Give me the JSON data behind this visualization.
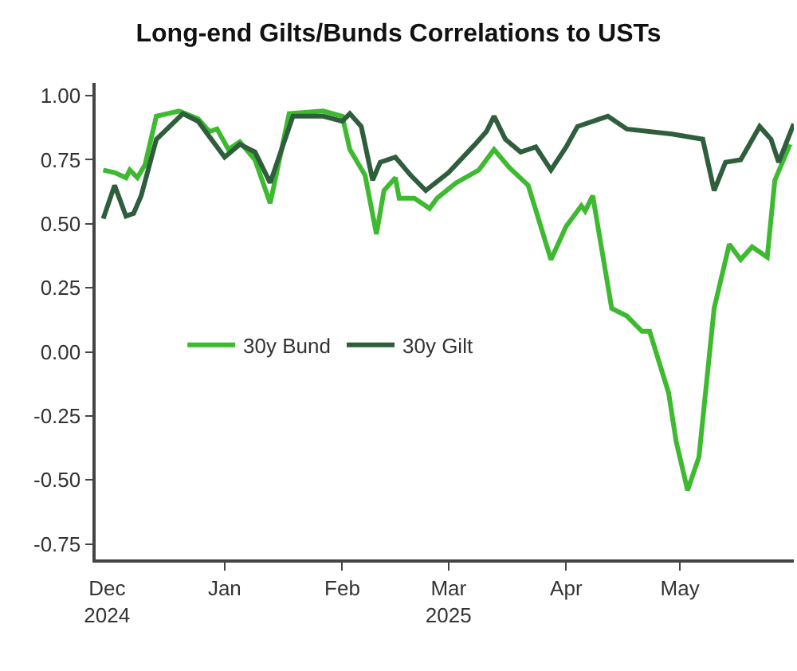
{
  "chart_data": {
    "type": "line",
    "title": "Long-end Gilts/Bunds Correlations to USTs",
    "xlim": [
      "2024-11-28",
      "2025-05-31"
    ],
    "xticks": [
      {
        "value": "2024-12-01",
        "label": "Dec\n2024"
      },
      {
        "value": "2025-01-01",
        "label": "Jan"
      },
      {
        "value": "2025-02-01",
        "label": "Feb"
      },
      {
        "value": "2025-03-01",
        "label": "Mar\n2025"
      },
      {
        "value": "2025-04-01",
        "label": "Apr"
      },
      {
        "value": "2025-05-01",
        "label": "May"
      }
    ],
    "ylim": [
      -0.81,
      1.05
    ],
    "yticks": [
      {
        "value": 1,
        "label": "1.00"
      },
      {
        "value": 0.75,
        "label": "0.75"
      },
      {
        "value": 0.5,
        "label": "0.50"
      },
      {
        "value": 0.25,
        "label": "0.25"
      },
      {
        "value": 0,
        "label": "0.00"
      },
      {
        "value": -0.25,
        "label": "-0.25"
      },
      {
        "value": -0.5,
        "label": "-0.50"
      },
      {
        "value": -0.75,
        "label": "-0.75"
      }
    ],
    "grid": false,
    "legend": "left",
    "marker": "none",
    "line_style": "solid",
    "series": [
      {
        "name": "30y Bund",
        "color": "#3dba30",
        "x": [
          "2024-11-30",
          "2024-12-03",
          "2024-12-06",
          "2024-12-07",
          "2024-12-09",
          "2024-12-11",
          "2024-12-14",
          "2024-12-20",
          "2024-12-25",
          "2024-12-28",
          "2024-12-30",
          "2025-01-02",
          "2025-01-05",
          "2025-01-09",
          "2025-01-13",
          "2025-01-18",
          "2025-01-27",
          "2025-02-01",
          "2025-02-03",
          "2025-02-07",
          "2025-02-10",
          "2025-02-12",
          "2025-02-15",
          "2025-02-16",
          "2025-02-20",
          "2025-02-24",
          "2025-02-26",
          "2025-03-03",
          "2025-03-09",
          "2025-03-13",
          "2025-03-17",
          "2025-03-22",
          "2025-03-28",
          "2025-04-01",
          "2025-04-05",
          "2025-04-06",
          "2025-04-08",
          "2025-04-13",
          "2025-04-17",
          "2025-04-21",
          "2025-04-23",
          "2025-04-28",
          "2025-04-30",
          "2025-05-03",
          "2025-05-06",
          "2025-05-10",
          "2025-05-14",
          "2025-05-17",
          "2025-05-20",
          "2025-05-24",
          "2025-05-26",
          "2025-05-30"
        ],
        "values": [
          0.71,
          0.7,
          0.68,
          0.71,
          0.68,
          0.73,
          0.92,
          0.94,
          0.91,
          0.86,
          0.87,
          0.79,
          0.82,
          0.75,
          0.58,
          0.93,
          0.94,
          0.92,
          0.79,
          0.69,
          0.46,
          0.63,
          0.68,
          0.6,
          0.6,
          0.56,
          0.6,
          0.66,
          0.71,
          0.79,
          0.72,
          0.65,
          0.36,
          0.49,
          0.57,
          0.55,
          0.61,
          0.17,
          0.14,
          0.08,
          0.08,
          -0.16,
          -0.35,
          -0.54,
          -0.41,
          0.17,
          0.42,
          0.36,
          0.41,
          0.37,
          0.67,
          0.81
        ]
      },
      {
        "name": "30y Gilt",
        "color": "#2f5e3c",
        "x": [
          "2024-11-30",
          "2024-12-03",
          "2024-12-06",
          "2024-12-08",
          "2024-12-10",
          "2024-12-14",
          "2024-12-21",
          "2024-12-25",
          "2025-01-01",
          "2025-01-05",
          "2025-01-09",
          "2025-01-13",
          "2025-01-19",
          "2025-01-27",
          "2025-02-01",
          "2025-02-03",
          "2025-02-06",
          "2025-02-09",
          "2025-02-11",
          "2025-02-15",
          "2025-02-19",
          "2025-02-23",
          "2025-03-01",
          "2025-03-08",
          "2025-03-11",
          "2025-03-13",
          "2025-03-16",
          "2025-03-20",
          "2025-03-24",
          "2025-03-28",
          "2025-04-01",
          "2025-04-04",
          "2025-04-12",
          "2025-04-17",
          "2025-04-29",
          "2025-05-07",
          "2025-05-10",
          "2025-05-13",
          "2025-05-17",
          "2025-05-22",
          "2025-05-25",
          "2025-05-27",
          "2025-05-31"
        ],
        "values": [
          0.52,
          0.65,
          0.53,
          0.54,
          0.61,
          0.83,
          0.93,
          0.9,
          0.76,
          0.81,
          0.78,
          0.66,
          0.92,
          0.92,
          0.9,
          0.93,
          0.88,
          0.67,
          0.74,
          0.76,
          0.69,
          0.63,
          0.7,
          0.81,
          0.86,
          0.92,
          0.83,
          0.78,
          0.8,
          0.71,
          0.8,
          0.88,
          0.92,
          0.87,
          0.85,
          0.83,
          0.63,
          0.74,
          0.75,
          0.88,
          0.83,
          0.74,
          0.89
        ]
      }
    ]
  }
}
